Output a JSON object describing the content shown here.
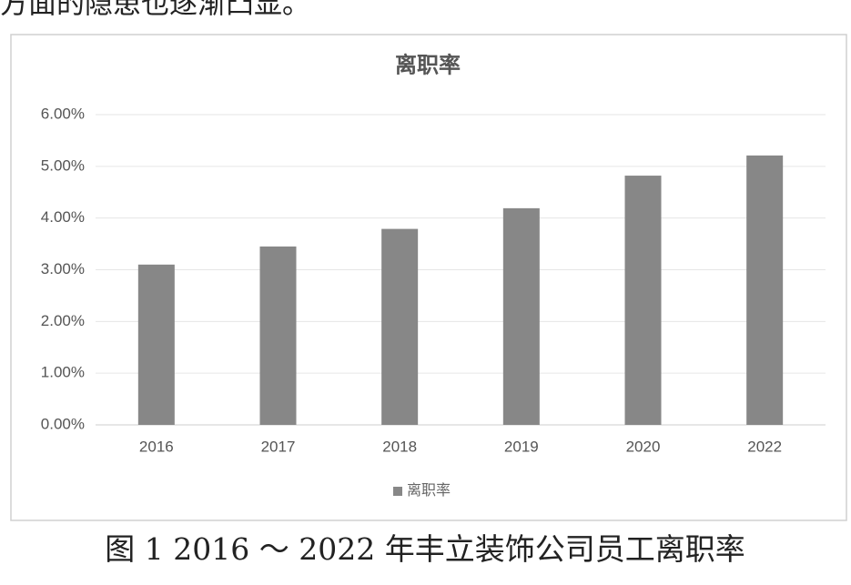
{
  "text_above": "方面的隐患也逐渐凸显。",
  "caption": "图 1  2016 ～ 2022 年丰立装饰公司员工离职率",
  "chart_data": {
    "type": "bar",
    "title": "离职率",
    "categories": [
      "2016",
      "2017",
      "2018",
      "2019",
      "2020",
      "2022"
    ],
    "series": [
      {
        "name": "离职率",
        "color": "#878787",
        "values": [
          3.1,
          3.45,
          3.79,
          4.19,
          4.82,
          5.21
        ]
      }
    ],
    "ylim": [
      0,
      6
    ],
    "yticks": [
      {
        "value": 0,
        "label": "0.00%"
      },
      {
        "value": 1,
        "label": "1.00%"
      },
      {
        "value": 2,
        "label": "2.00%"
      },
      {
        "value": 3,
        "label": "3.00%"
      },
      {
        "value": 4,
        "label": "4.00%"
      },
      {
        "value": 5,
        "label": "5.00%"
      },
      {
        "value": 6,
        "label": "6.00%"
      }
    ],
    "grid": true,
    "legend": "bottom"
  }
}
